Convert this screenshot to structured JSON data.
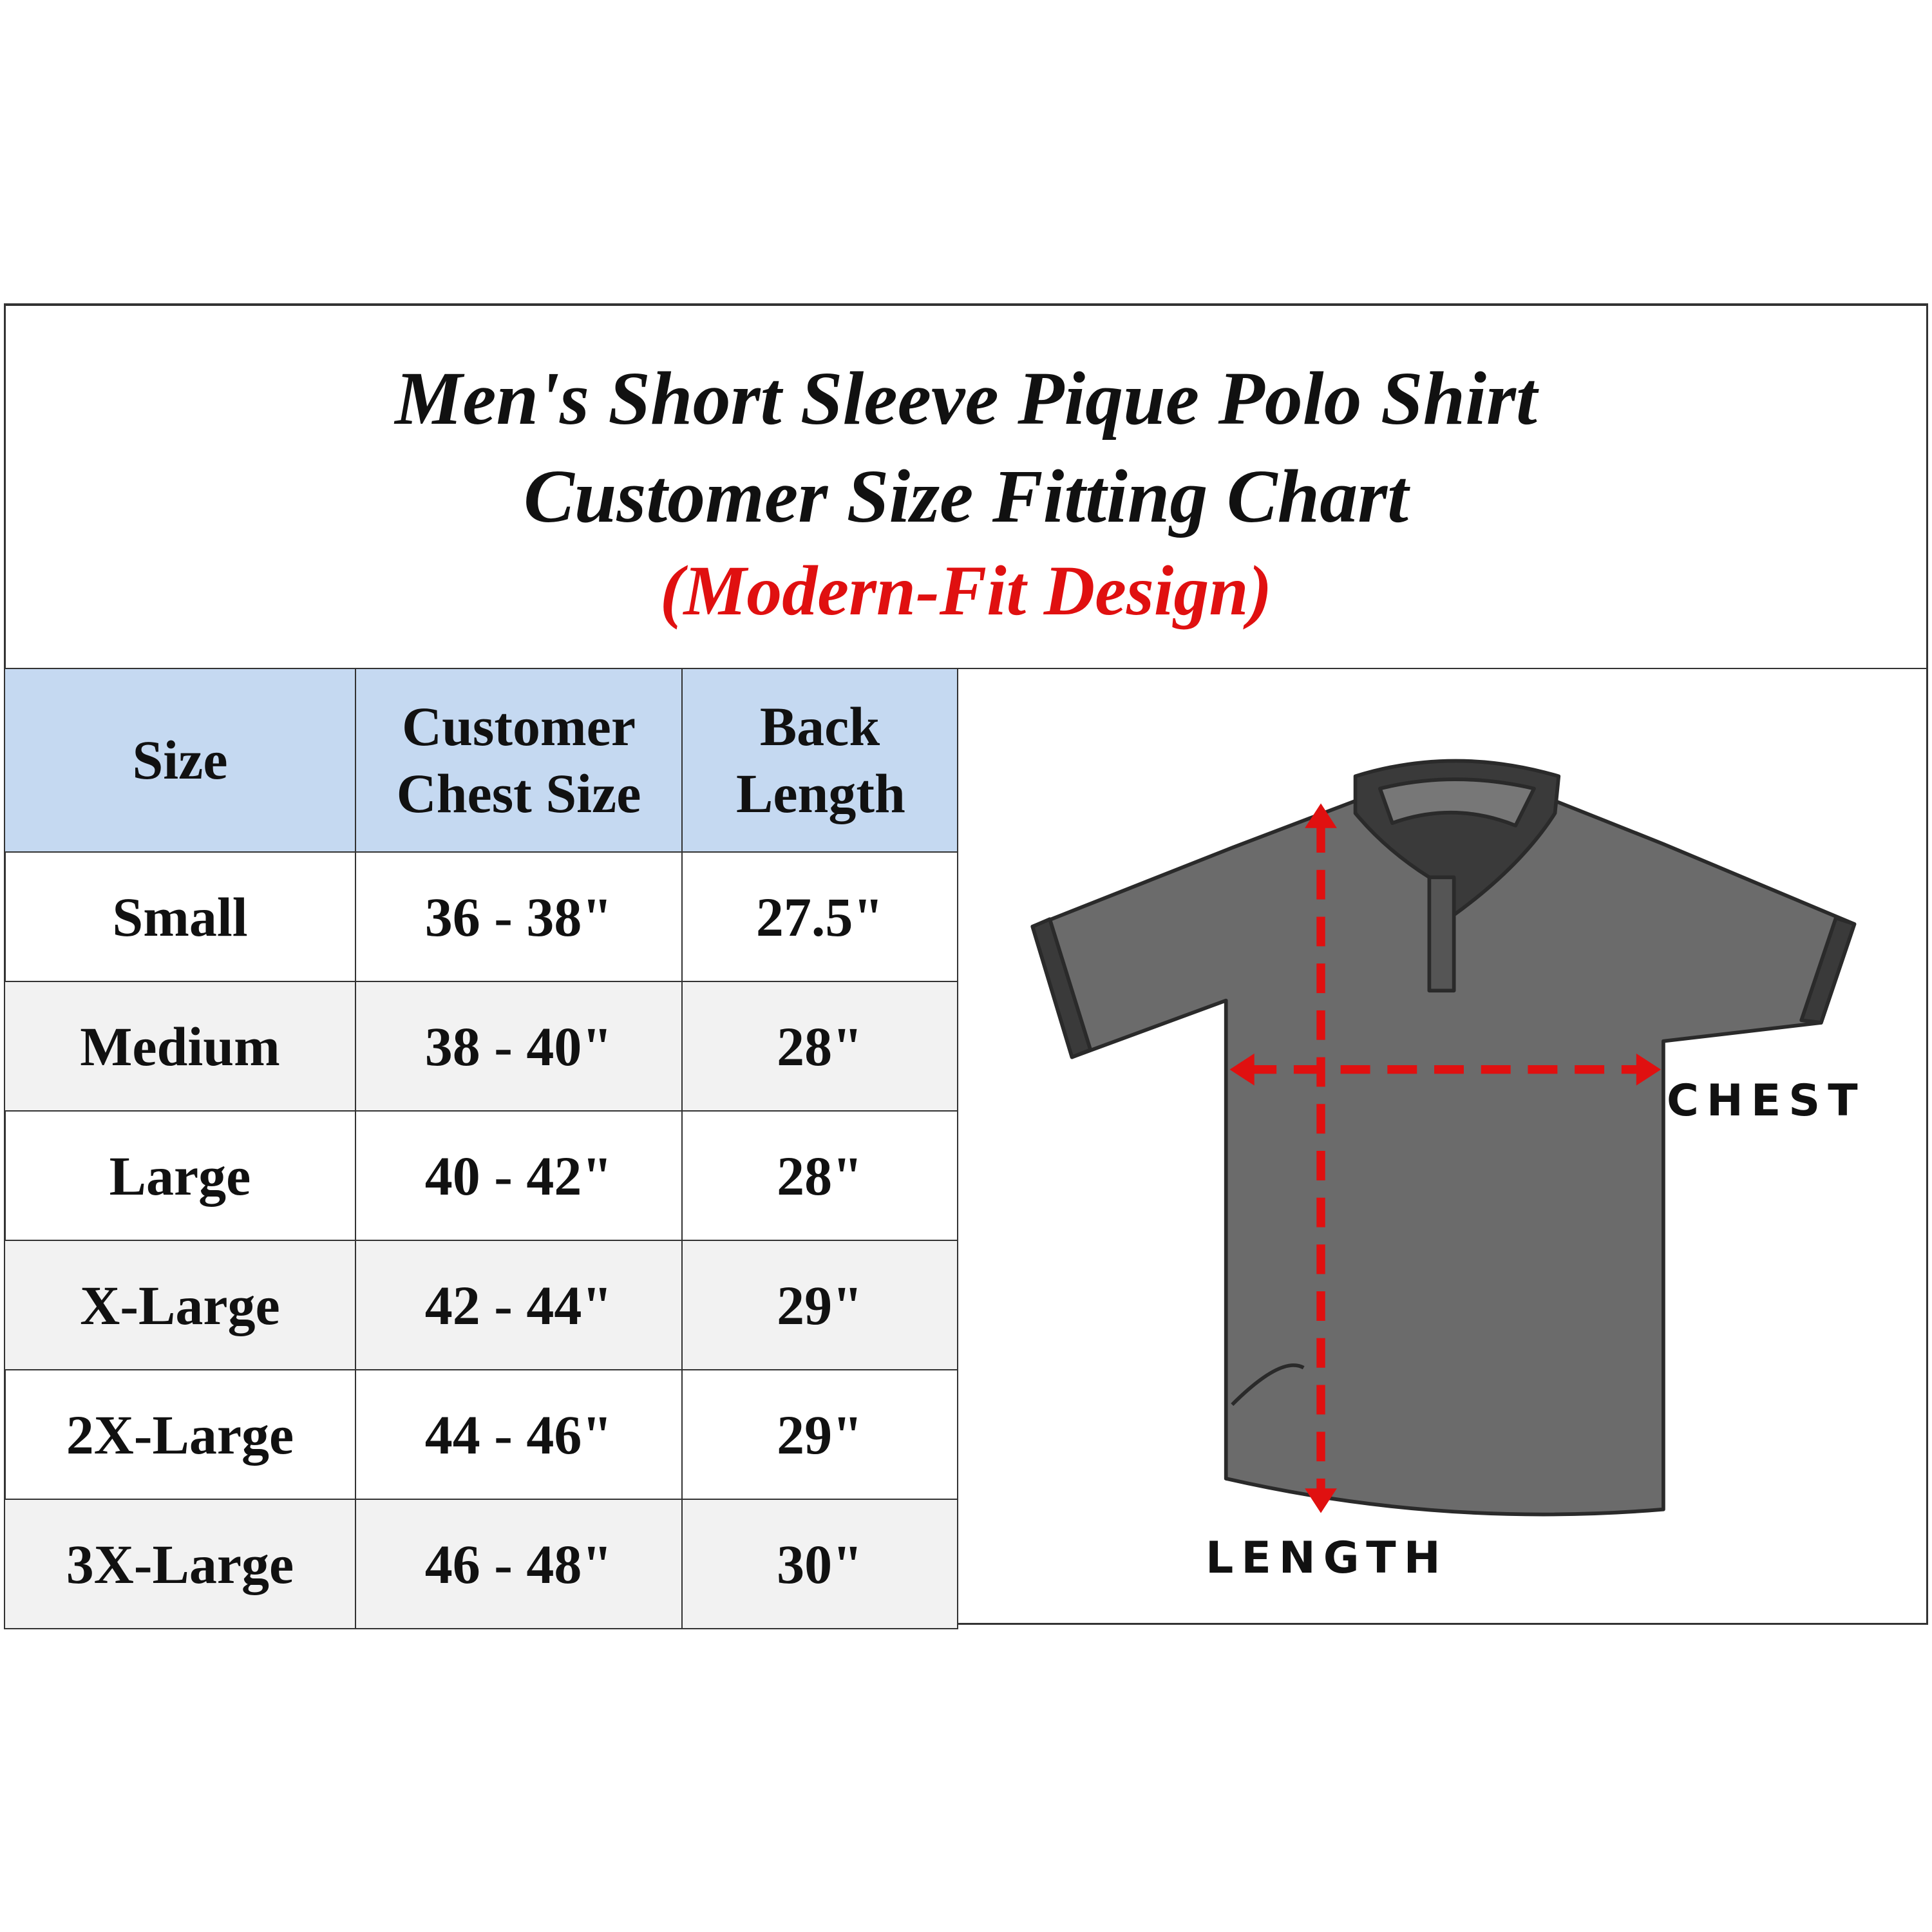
{
  "title": {
    "line1": "Men's Short Sleeve Pique Polo Shirt",
    "line2": "Customer Size Fitting Chart",
    "line3": "(Modern-Fit Design)"
  },
  "table": {
    "headers": [
      "Size",
      "Customer Chest Size",
      "Back Length"
    ],
    "rows": [
      [
        "Small",
        "36 - 38\"",
        "27.5\""
      ],
      [
        "Medium",
        "38 - 40\"",
        "28\""
      ],
      [
        "Large",
        "40 - 42\"",
        "28\""
      ],
      [
        "X-Large",
        "42 - 44\"",
        "29\""
      ],
      [
        "2X-Large",
        "44 - 46\"",
        "29\""
      ],
      [
        "3X-Large",
        "46 - 48\"",
        "30\""
      ]
    ]
  },
  "diagram": {
    "chest_label": "CHEST",
    "length_label": "LENGTH",
    "icon": "polo-shirt-icon"
  },
  "colors": {
    "header_bg": "#c5d9f1",
    "alt_row": "#f2f2f2",
    "accent_red": "#e01010",
    "shirt": "#6b6b6b"
  }
}
